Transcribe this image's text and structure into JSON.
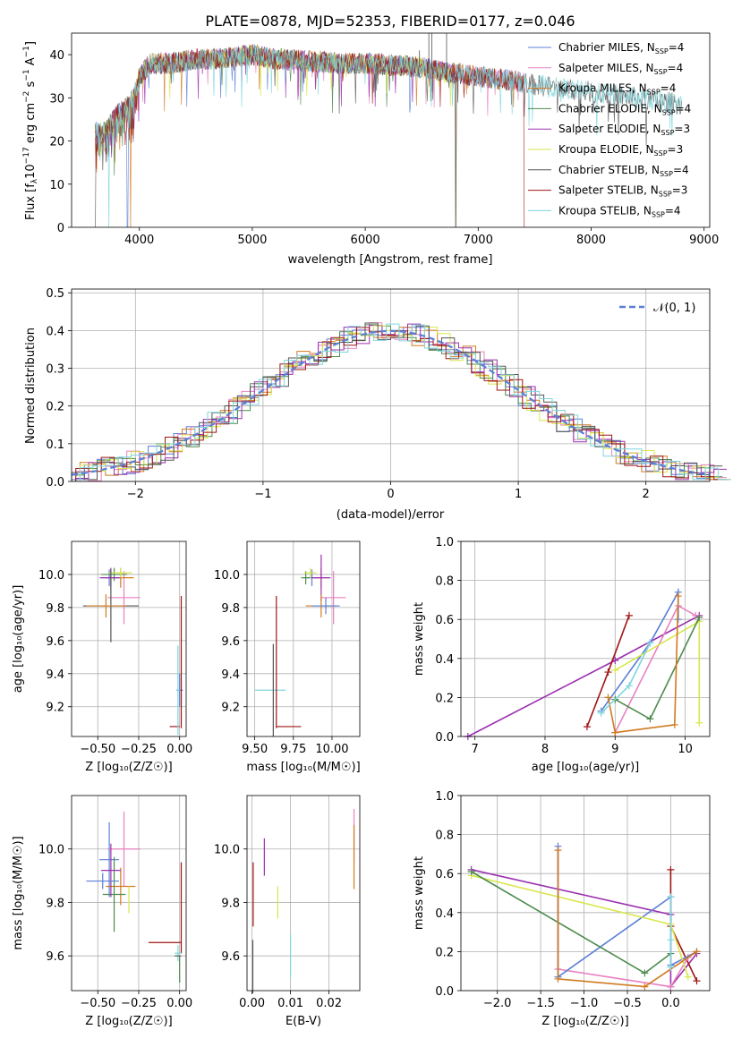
{
  "figure_title": "PLATE=0878, MJD=52353, FIBERID=0177, z=0.046",
  "chart_data": [
    {
      "id": "spectrum",
      "type": "line",
      "xlabel": "wavelength [Angstrom, rest frame]",
      "ylabel_pre": "Flux [f",
      "ylabel_sub": "λ",
      "ylabel_mid": "10",
      "ylabel_sup": "−17",
      "ylabel_post": " erg cm",
      "ylabel_sup2": "−2",
      "ylabel_post2": " s",
      "ylabel_sup3": "−1",
      "ylabel_post3": " A",
      "ylabel_sup4": "−1",
      "ylabel_end": "]",
      "xlim": [
        3400,
        9050
      ],
      "ylim": [
        0,
        45
      ],
      "xticks": [
        4000,
        5000,
        6000,
        7000,
        8000,
        9000
      ],
      "yticks": [
        0,
        10,
        20,
        30,
        40
      ],
      "grid": false,
      "legend_position": "upper right",
      "continuum": [
        [
          3610,
          22
        ],
        [
          3700,
          22
        ],
        [
          3800,
          26
        ],
        [
          3900,
          28
        ],
        [
          3950,
          30
        ],
        [
          4000,
          35
        ],
        [
          4100,
          38
        ],
        [
          4300,
          38
        ],
        [
          4500,
          39
        ],
        [
          4700,
          39
        ],
        [
          5000,
          40
        ],
        [
          5200,
          39
        ],
        [
          5500,
          38.5
        ],
        [
          5800,
          38
        ],
        [
          6000,
          38
        ],
        [
          6300,
          37.5
        ],
        [
          6500,
          37
        ],
        [
          6700,
          36
        ],
        [
          7000,
          35
        ],
        [
          7300,
          34
        ],
        [
          7500,
          33
        ],
        [
          7800,
          32
        ],
        [
          8100,
          31
        ],
        [
          8400,
          30
        ],
        [
          8800,
          28.5
        ]
      ],
      "series": [
        {
          "name_pre": "Chabrier MILES, N",
          "name_sub": "SSP",
          "name_post": "=4",
          "color": "#5a7fd8",
          "x_end": 7410,
          "drops": [
            3895
          ]
        },
        {
          "name_pre": "Salpeter MILES, N",
          "name_sub": "SSP",
          "name_post": "=4",
          "color": "#e882c2",
          "x_end": 7410,
          "drops": []
        },
        {
          "name_pre": "Kroupa MILES, N",
          "name_sub": "SSP",
          "name_post": "=4",
          "color": "#d17a20",
          "x_end": 7410,
          "drops": [
            3920,
            6800
          ]
        },
        {
          "name_pre": "Chabrier ELODIE, N",
          "name_sub": "SSP",
          "name_post": "=4",
          "color": "#4e8b4e",
          "x_end": 6800,
          "drops": [
            6800
          ]
        },
        {
          "name_pre": "Salpeter ELODIE, N",
          "name_sub": "SSP",
          "name_post": "=3",
          "color": "#9b30b0",
          "x_end": 6800,
          "drops": []
        },
        {
          "name_pre": "Kroupa ELODIE, N",
          "name_sub": "SSP",
          "name_post": "=3",
          "color": "#d9e64a",
          "x_end": 6800,
          "drops": []
        },
        {
          "name_pre": "Chabrier STELIB, N",
          "name_sub": "SSP",
          "name_post": "=4",
          "color": "#555555",
          "x_end": 8800,
          "drops": [
            3610,
            6800
          ]
        },
        {
          "name_pre": "Salpeter STELIB, N",
          "name_sub": "SSP",
          "name_post": "=3",
          "color": "#a01515",
          "x_end": 7410,
          "drops": [
            7410
          ]
        },
        {
          "name_pre": "Kroupa STELIB, N",
          "name_sub": "SSP",
          "name_post": "=4",
          "color": "#7fd6dd",
          "x_end": 8800,
          "drops": [
            3730
          ]
        }
      ],
      "spikes": [
        [
          6563,
          45
        ],
        [
          6590,
          45
        ],
        [
          6720,
          45
        ],
        [
          6480,
          41
        ]
      ]
    },
    {
      "id": "residuals",
      "type": "histogram",
      "xlabel": "(data-model)/error",
      "ylabel": "Normed distribution",
      "xlim": [
        -2.5,
        2.5
      ],
      "ylim": [
        0,
        0.51
      ],
      "xticks": [
        -2,
        -1,
        0,
        1,
        2
      ],
      "yticks": [
        0.0,
        0.1,
        0.2,
        0.3,
        0.4,
        0.5
      ],
      "ytick_labels": [
        "0.0",
        "0.1",
        "0.2",
        "0.3",
        "0.4",
        "0.5"
      ],
      "grid": true,
      "legend_position": "upper right",
      "reference_label": "𝒩(0, 1)",
      "reference_color": "#5a7fd8",
      "bin_start": -2.5,
      "bin_width": 0.1
    },
    {
      "id": "age_vs_Z",
      "type": "errorbar",
      "xlabel": "Z [log₁₀(Z/Z☉)]",
      "ylabel": "age  [log₁₀(age/yr)]",
      "xlim": [
        -0.66,
        0.04
      ],
      "ylim": [
        9.02,
        10.2
      ],
      "xticks": [
        -0.5,
        -0.25,
        0.0
      ],
      "xtick_labels": [
        "−0.50",
        "−0.25",
        "0.00"
      ],
      "yticks": [
        9.2,
        9.4,
        9.6,
        9.8,
        10.0
      ],
      "ytick_labels": [
        "9.2",
        "9.4",
        "9.6",
        "9.8",
        "10.0"
      ],
      "grid": true,
      "points": [
        {
          "x": -0.43,
          "xerr": 0.06,
          "y": 9.98,
          "yerr": 0.05,
          "color": "#5a7fd8"
        },
        {
          "x": -0.34,
          "xerr": 0.1,
          "y": 9.86,
          "yerr": 0.16,
          "color": "#e882c2"
        },
        {
          "x": -0.36,
          "xerr": 0.08,
          "y": 9.98,
          "yerr": 0.06,
          "color": "#d17a20"
        },
        {
          "x": -0.4,
          "xerr": 0.08,
          "y": 10.0,
          "yerr": 0.04,
          "color": "#4e8b4e"
        },
        {
          "x": -0.42,
          "xerr": 0.06,
          "y": 9.98,
          "yerr": 0.06,
          "color": "#9b30b0"
        },
        {
          "x": -0.36,
          "xerr": 0.07,
          "y": 10.01,
          "yerr": 0.03,
          "color": "#d9e64a"
        },
        {
          "x": -0.42,
          "xerr": 0.17,
          "y": 9.81,
          "yerr": 0.22,
          "color": "#555555"
        },
        {
          "x": 0.0,
          "xerr": 0.02,
          "y": 9.3,
          "yerr": 0.1,
          "color": "#5a7fd8"
        },
        {
          "x": -0.03,
          "xerr": 0.03,
          "y": 9.08,
          "yerr": 0.0,
          "color": "#a01515"
        },
        {
          "x": 0.01,
          "xerr": 0.0,
          "y": 9.47,
          "yerr": 0.4,
          "color": "#a01515"
        },
        {
          "x": -0.01,
          "xerr": 0.01,
          "y": 9.3,
          "yerr": 0.27,
          "color": "#7fd6dd"
        },
        {
          "x": -0.45,
          "xerr": 0.12,
          "y": 9.81,
          "yerr": 0.07,
          "color": "#d17a20"
        }
      ]
    },
    {
      "id": "age_vs_mass",
      "type": "errorbar",
      "xlabel": "mass [log₁₀(M/M☉)]",
      "ylabel": "",
      "xlim": [
        9.45,
        10.18
      ],
      "ylim": [
        9.02,
        10.2
      ],
      "xticks": [
        9.5,
        9.75,
        10.0
      ],
      "xtick_labels": [
        "9.50",
        "9.75",
        "10.00"
      ],
      "yticks": [
        9.2,
        9.4,
        9.6,
        9.8,
        10.0
      ],
      "ytick_labels": [
        "9.2",
        "9.4",
        "9.6",
        "9.8",
        "10.0"
      ],
      "grid": true,
      "points": [
        {
          "x": 9.87,
          "xerr": 0.05,
          "y": 9.98,
          "yerr": 0.05,
          "color": "#5a7fd8"
        },
        {
          "x": 10.01,
          "xerr": 0.08,
          "y": 9.86,
          "yerr": 0.16,
          "color": "#e882c2"
        },
        {
          "x": 9.93,
          "xerr": 0.05,
          "y": 9.98,
          "yerr": 0.06,
          "color": "#d17a20"
        },
        {
          "x": 9.83,
          "xerr": 0.03,
          "y": 9.98,
          "yerr": 0.04,
          "color": "#4e8b4e"
        },
        {
          "x": 9.93,
          "xerr": 0.06,
          "y": 9.98,
          "yerr": 0.14,
          "color": "#9b30b0"
        },
        {
          "x": 9.86,
          "xerr": 0.04,
          "y": 10.01,
          "yerr": 0.03,
          "color": "#d9e64a"
        },
        {
          "x": 9.93,
          "xerr": 0.1,
          "y": 9.81,
          "yerr": 0.07,
          "color": "#d17a20"
        },
        {
          "x": 9.96,
          "xerr": 0.09,
          "y": 9.81,
          "yerr": 0.05,
          "color": "#5a7fd8"
        },
        {
          "x": 9.6,
          "xerr": 0.1,
          "y": 9.3,
          "yerr": 0.0,
          "color": "#7fd6dd"
        },
        {
          "x": 9.62,
          "xerr": 0.0,
          "y": 9.3,
          "yerr": 0.28,
          "color": "#555555"
        },
        {
          "x": 9.72,
          "xerr": 0.08,
          "y": 9.08,
          "yerr": 0.0,
          "color": "#a01515"
        },
        {
          "x": 9.64,
          "xerr": 0.0,
          "y": 9.47,
          "yerr": 0.4,
          "color": "#a01515"
        }
      ]
    },
    {
      "id": "weight_vs_age",
      "type": "line",
      "xlabel": "age  [log₁₀(age/yr)]",
      "ylabel": "mass weight",
      "xlim": [
        6.8,
        10.35
      ],
      "ylim": [
        0.0,
        1.0
      ],
      "xticks": [
        7,
        8,
        9,
        10
      ],
      "xtick_labels": [
        "7",
        "8",
        "9",
        "10"
      ],
      "yticks": [
        0.0,
        0.2,
        0.4,
        0.6,
        0.8,
        1.0
      ],
      "ytick_labels": [
        "0.0",
        "0.2",
        "0.4",
        "0.6",
        "0.8",
        "1.0"
      ],
      "grid": true,
      "series": [
        {
          "color": "#9b30b0",
          "points": [
            [
              6.9,
              0.0
            ],
            [
              9.0,
              0.39
            ],
            [
              10.2,
              0.62
            ]
          ]
        },
        {
          "color": "#a01515",
          "points": [
            [
              8.6,
              0.05
            ],
            [
              8.9,
              0.33
            ],
            [
              9.2,
              0.62
            ]
          ]
        },
        {
          "color": "#e882c2",
          "points": [
            [
              9.0,
              0.02
            ],
            [
              9.9,
              0.67
            ],
            [
              10.15,
              0.62
            ]
          ]
        },
        {
          "color": "#5a7fd8",
          "points": [
            [
              8.8,
              0.13
            ],
            [
              9.5,
              0.48
            ],
            [
              9.9,
              0.74
            ],
            [
              9.9,
              0.6
            ]
          ]
        },
        {
          "color": "#d9e64a",
          "points": [
            [
              9.0,
              0.34
            ],
            [
              10.2,
              0.59
            ],
            [
              10.2,
              0.07
            ]
          ]
        },
        {
          "color": "#4e8b4e",
          "points": [
            [
              9.0,
              0.19
            ],
            [
              9.5,
              0.09
            ],
            [
              10.2,
              0.61
            ]
          ]
        },
        {
          "color": "#d17a20",
          "points": [
            [
              8.9,
              0.2
            ],
            [
              9.0,
              0.02
            ],
            [
              9.85,
              0.06
            ],
            [
              9.9,
              0.72
            ]
          ]
        },
        {
          "color": "#7fd6dd",
          "points": [
            [
              8.8,
              0.12
            ],
            [
              9.2,
              0.26
            ],
            [
              9.5,
              0.48
            ]
          ]
        }
      ]
    },
    {
      "id": "mass_vs_Z",
      "type": "errorbar",
      "xlabel": "Z [log₁₀(Z/Z☉)]",
      "ylabel": "mass [log₁₀(M/M☉)]",
      "xlim": [
        -0.66,
        0.04
      ],
      "ylim": [
        9.47,
        10.2
      ],
      "xticks": [
        -0.5,
        -0.25,
        0.0
      ],
      "xtick_labels": [
        "−0.50",
        "−0.25",
        "0.00"
      ],
      "yticks": [
        9.6,
        9.8,
        10.0
      ],
      "ytick_labels": [
        "9.6",
        "9.8",
        "10.0"
      ],
      "grid": true,
      "points": [
        {
          "x": -0.43,
          "xerr": 0.06,
          "y": 9.96,
          "yerr": 0.14,
          "color": "#5a7fd8"
        },
        {
          "x": -0.34,
          "xerr": 0.1,
          "y": 10.0,
          "yerr": 0.14,
          "color": "#e882c2"
        },
        {
          "x": -0.36,
          "xerr": 0.09,
          "y": 9.86,
          "yerr": 0.07,
          "color": "#d17a20"
        },
        {
          "x": -0.4,
          "xerr": 0.07,
          "y": 9.83,
          "yerr": 0.14,
          "color": "#4e8b4e"
        },
        {
          "x": -0.42,
          "xerr": 0.06,
          "y": 9.92,
          "yerr": 0.1,
          "color": "#9b30b0"
        },
        {
          "x": -0.31,
          "xerr": 0.0,
          "y": 9.81,
          "yerr": 0.05,
          "color": "#d9e64a"
        },
        {
          "x": -0.47,
          "xerr": 0.1,
          "y": 9.88,
          "yerr": 0.03,
          "color": "#5a7fd8"
        },
        {
          "x": -0.09,
          "xerr": 0.1,
          "y": 9.65,
          "yerr": 0.0,
          "color": "#a01515"
        },
        {
          "x": 0.01,
          "xerr": 0.0,
          "y": 9.78,
          "yerr": 0.17,
          "color": "#a01515"
        },
        {
          "x": -0.01,
          "xerr": 0.02,
          "y": 9.61,
          "yerr": 0.03,
          "color": "#7fd6dd"
        },
        {
          "x": -0.01,
          "xerr": 0.02,
          "y": 9.6,
          "yerr": 0.0,
          "color": "#555555"
        },
        {
          "x": 0.0,
          "xerr": 0.0,
          "y": 9.55,
          "yerr": 0.05,
          "color": "#4e8b4e"
        }
      ]
    },
    {
      "id": "mass_vs_ebv",
      "type": "errorbar",
      "xlabel": "E(B-V)",
      "ylabel": "",
      "xlim": [
        -0.0013,
        0.028
      ],
      "ylim": [
        9.47,
        10.2
      ],
      "xticks": [
        0.0,
        0.01,
        0.02
      ],
      "xtick_labels": [
        "0.00",
        "0.01",
        "0.02"
      ],
      "yticks": [
        9.6,
        9.8,
        10.0
      ],
      "ytick_labels": [
        "9.6",
        "9.8",
        "10.0"
      ],
      "grid": true,
      "points": [
        {
          "x": 0.0003,
          "xerr": 0.0,
          "y": 9.83,
          "yerr": 0.12,
          "color": "#a01515"
        },
        {
          "x": 0.0002,
          "xerr": 0.0,
          "y": 9.56,
          "yerr": 0.1,
          "color": "#555555"
        },
        {
          "x": 0.0032,
          "xerr": 0.0,
          "y": 9.97,
          "yerr": 0.07,
          "color": "#9b30b0"
        },
        {
          "x": 0.0067,
          "xerr": 0.0,
          "y": 9.8,
          "yerr": 0.06,
          "color": "#d9e64a"
        },
        {
          "x": 0.01,
          "xerr": 0.0,
          "y": 9.6,
          "yerr": 0.08,
          "color": "#7fd6dd"
        },
        {
          "x": 0.0265,
          "xerr": 0.0,
          "y": 10.05,
          "yerr": 0.1,
          "color": "#e882c2"
        },
        {
          "x": 0.0265,
          "xerr": 0.0,
          "y": 9.97,
          "yerr": 0.12,
          "color": "#d17a20"
        }
      ]
    },
    {
      "id": "weight_vs_Z",
      "type": "line",
      "xlabel": "Z [log₁₀(Z/Z☉)]",
      "ylabel": "mass weight",
      "xlim": [
        -2.42,
        0.45
      ],
      "ylim": [
        0.0,
        1.0
      ],
      "xticks": [
        -2.0,
        -1.5,
        -1.0,
        -0.5,
        0.0
      ],
      "xtick_labels": [
        "−2.0",
        "−1.5",
        "−1.0",
        "−0.5",
        "0.0"
      ],
      "yticks": [
        0.0,
        0.2,
        0.4,
        0.6,
        0.8,
        1.0
      ],
      "ytick_labels": [
        "0.0",
        "0.2",
        "0.4",
        "0.6",
        "0.8",
        "1.0"
      ],
      "grid": true,
      "series": [
        {
          "color": "#9b30b0",
          "points": [
            [
              -2.3,
              0.62
            ],
            [
              0.0,
              0.39
            ],
            [
              0.0,
              0.02
            ],
            [
              0.3,
              0.19
            ]
          ]
        },
        {
          "color": "#a01515",
          "points": [
            [
              0.0,
              0.62
            ],
            [
              0.0,
              0.33
            ],
            [
              0.3,
              0.05
            ]
          ]
        },
        {
          "color": "#e882c2",
          "points": [
            [
              -1.3,
              0.72
            ],
            [
              -1.3,
              0.11
            ],
            [
              0.0,
              0.02
            ],
            [
              0.2,
              0.17
            ]
          ]
        },
        {
          "color": "#5a7fd8",
          "points": [
            [
              -1.3,
              0.74
            ],
            [
              -1.3,
              0.07
            ],
            [
              0.0,
              0.48
            ],
            [
              0.0,
              0.13
            ],
            [
              0.3,
              0.2
            ]
          ]
        },
        {
          "color": "#d9e64a",
          "points": [
            [
              -2.3,
              0.59
            ],
            [
              0.0,
              0.34
            ],
            [
              0.2,
              0.07
            ]
          ]
        },
        {
          "color": "#4e8b4e",
          "points": [
            [
              -2.3,
              0.61
            ],
            [
              -0.3,
              0.09
            ],
            [
              0.0,
              0.19
            ]
          ]
        },
        {
          "color": "#d17a20",
          "points": [
            [
              -1.3,
              0.72
            ],
            [
              -1.3,
              0.06
            ],
            [
              -0.3,
              0.02
            ],
            [
              0.3,
              0.2
            ]
          ]
        },
        {
          "color": "#7fd6dd",
          "points": [
            [
              0.0,
              0.48
            ],
            [
              0.0,
              0.12
            ],
            [
              0.0,
              0.26
            ]
          ]
        }
      ]
    }
  ]
}
